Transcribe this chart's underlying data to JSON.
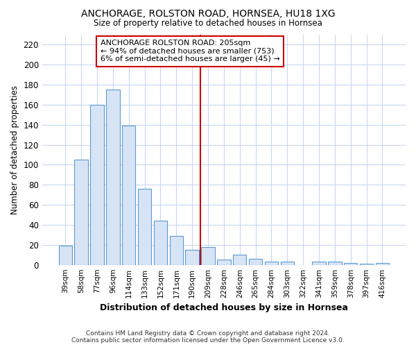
{
  "title": "ANCHORAGE, ROLSTON ROAD, HORNSEA, HU18 1XG",
  "subtitle": "Size of property relative to detached houses in Hornsea",
  "xlabel": "Distribution of detached houses by size in Hornsea",
  "ylabel": "Number of detached properties",
  "categories": [
    "39sqm",
    "58sqm",
    "77sqm",
    "96sqm",
    "114sqm",
    "133sqm",
    "152sqm",
    "171sqm",
    "190sqm",
    "209sqm",
    "228sqm",
    "246sqm",
    "265sqm",
    "284sqm",
    "303sqm",
    "322sqm",
    "341sqm",
    "359sqm",
    "378sqm",
    "397sqm",
    "416sqm"
  ],
  "values": [
    19,
    105,
    160,
    175,
    139,
    76,
    44,
    29,
    15,
    18,
    5,
    10,
    6,
    3,
    3,
    0,
    3,
    3,
    2,
    1,
    2
  ],
  "bar_color": "#d6e4f5",
  "bar_edge_color": "#5b9bd5",
  "fig_background_color": "#ffffff",
  "plot_background_color": "#ffffff",
  "grid_color": "#c8d8ed",
  "vline_x_index": 9.0,
  "vline_color": "#cc0000",
  "annotation_text": "ANCHORAGE ROLSTON ROAD: 205sqm\n← 94% of detached houses are smaller (753)\n6% of semi-detached houses are larger (45) →",
  "annotation_box_color": "#ffffff",
  "annotation_box_edge_color": "#cc0000",
  "ylim": [
    0,
    230
  ],
  "yticks": [
    0,
    20,
    40,
    60,
    80,
    100,
    120,
    140,
    160,
    180,
    200,
    220
  ],
  "footer1": "Contains HM Land Registry data © Crown copyright and database right 2024.",
  "footer2": "Contains public sector information licensed under the Open Government Licence v3.0."
}
